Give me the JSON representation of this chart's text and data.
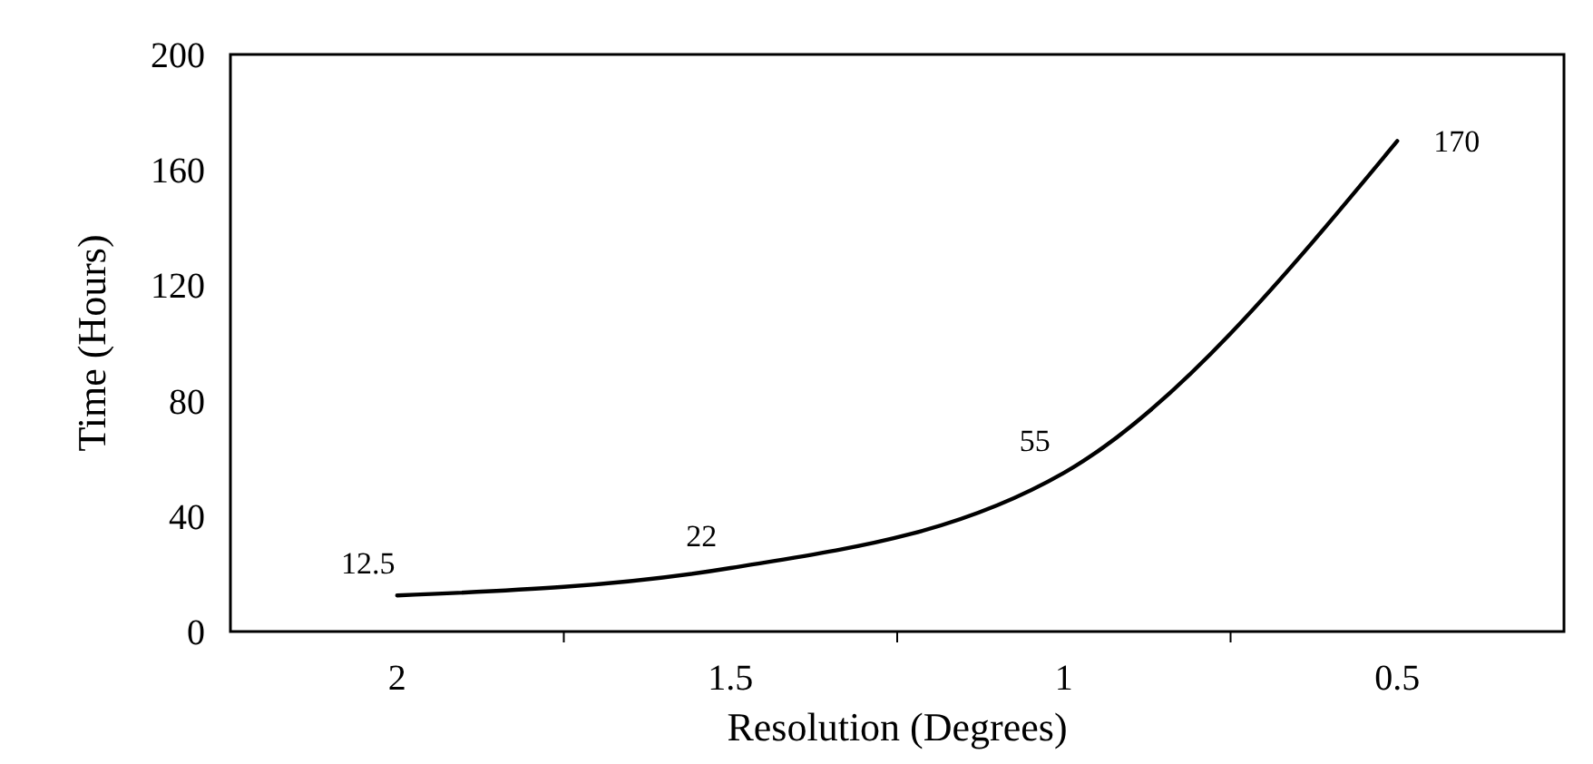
{
  "chart_data": {
    "type": "line",
    "xlabel": "Resolution (Degrees)",
    "ylabel": "Time (Hours)",
    "categories": [
      "2",
      "1.5",
      "1",
      "0.5"
    ],
    "series": [
      {
        "color": "#000000",
        "values": [
          12.5,
          22,
          55,
          170
        ]
      }
    ],
    "ylim": [
      0,
      200
    ],
    "yticks": [
      0,
      40,
      80,
      120,
      160,
      200
    ],
    "grid": false,
    "marker": "none",
    "line_style": "solid",
    "data_labels": true
  }
}
